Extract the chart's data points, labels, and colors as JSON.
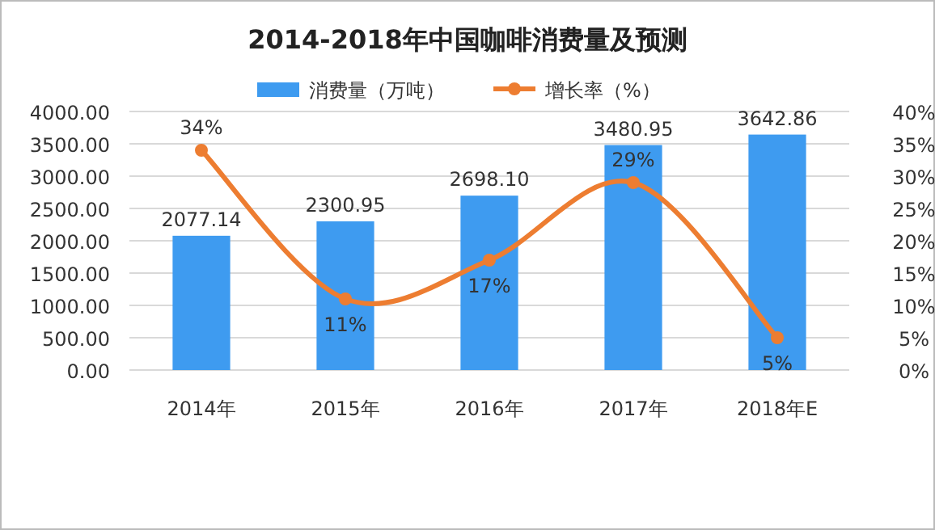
{
  "chart_data": {
    "type": "bar",
    "title": "2014-2018年中国咖啡消费量及预测",
    "categories": [
      "2014年",
      "2015年",
      "2016年",
      "2017年",
      "2018年E"
    ],
    "series": [
      {
        "name": "消费量（万吨）",
        "color": "#3e9bf0",
        "values": [
          2077.14,
          2300.95,
          2698.1,
          3480.95,
          3642.86
        ],
        "value_labels": [
          "2077.14",
          "2300.95",
          "2698.10",
          "3480.95",
          "3642.86"
        ]
      },
      {
        "name": "增长率（%）",
        "type": "line",
        "axis": "y2",
        "color": "#ed7d31",
        "marker": "circle",
        "values": [
          34,
          11,
          17,
          29,
          5
        ],
        "value_labels": [
          "34%",
          "11%",
          "17%",
          "29%",
          "5%"
        ]
      }
    ],
    "ylim": [
      0,
      4000
    ],
    "yticks": [
      {
        "value": 0,
        "label": "0.00"
      },
      {
        "value": 500,
        "label": "500.00"
      },
      {
        "value": 1000,
        "label": "1000.00"
      },
      {
        "value": 1500,
        "label": "1500.00"
      },
      {
        "value": 2000,
        "label": "2000.00"
      },
      {
        "value": 2500,
        "label": "2500.00"
      },
      {
        "value": 3000,
        "label": "3000.00"
      },
      {
        "value": 3500,
        "label": "3500.00"
      },
      {
        "value": 4000,
        "label": "4000.00"
      }
    ],
    "y2lim": [
      0,
      40
    ],
    "y2ticks": [
      {
        "value": 0,
        "label": "0%"
      },
      {
        "value": 5,
        "label": "5%"
      },
      {
        "value": 10,
        "label": "10%"
      },
      {
        "value": 15,
        "label": "15%"
      },
      {
        "value": 20,
        "label": "20%"
      },
      {
        "value": 25,
        "label": "25%"
      },
      {
        "value": 30,
        "label": "30%"
      },
      {
        "value": 35,
        "label": "35%"
      },
      {
        "value": 40,
        "label": "40%"
      }
    ],
    "grid": "y",
    "legend": "top"
  }
}
